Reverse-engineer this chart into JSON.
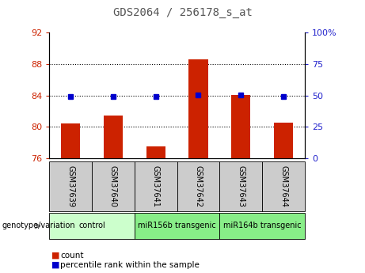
{
  "title": "GDS2064 / 256178_s_at",
  "samples": [
    "GSM37639",
    "GSM37640",
    "GSM37641",
    "GSM37642",
    "GSM37643",
    "GSM37644"
  ],
  "bar_values": [
    80.4,
    81.5,
    77.5,
    88.6,
    84.1,
    80.5
  ],
  "percentile_values": [
    49.0,
    49.0,
    49.0,
    50.5,
    50.5,
    49.0
  ],
  "bar_color": "#cc2200",
  "percentile_color": "#0000cc",
  "ylim_left": [
    76,
    92
  ],
  "ylim_right": [
    0,
    100
  ],
  "yticks_left": [
    76,
    80,
    84,
    88,
    92
  ],
  "yticks_right": [
    0,
    25,
    50,
    75,
    100
  ],
  "ytick_labels_right": [
    "0",
    "25",
    "50",
    "75",
    "100%"
  ],
  "baseline": 76,
  "grid_lines": [
    80,
    84,
    88
  ],
  "group_defs": [
    {
      "label": "control",
      "start": 0,
      "end": 2,
      "color": "#ccffcc"
    },
    {
      "label": "miR156b transgenic",
      "start": 2,
      "end": 4,
      "color": "#88ee88"
    },
    {
      "label": "miR164b transgenic",
      "start": 4,
      "end": 6,
      "color": "#88ee88"
    }
  ],
  "group_label": "genotype/variation",
  "legend_count": "count",
  "legend_percentile": "percentile rank within the sample",
  "title_color": "#555555",
  "left_tick_color": "#cc2200",
  "right_tick_color": "#2222cc",
  "sample_box_color": "#cccccc"
}
